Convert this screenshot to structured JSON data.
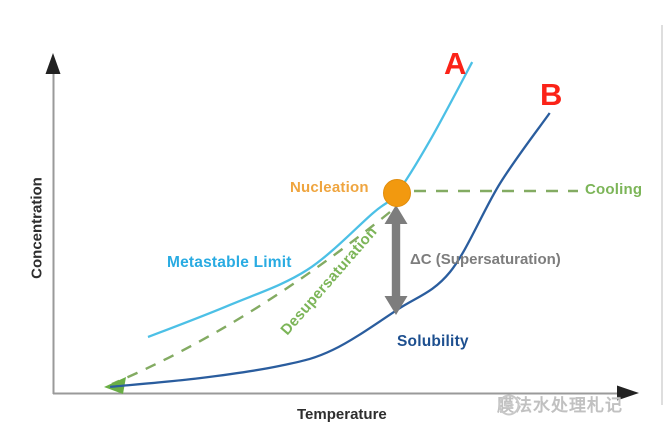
{
  "axes": {
    "x_label": "Temperature",
    "y_label": "Concentration",
    "axis_color": "#9a9a9a",
    "arrowhead_color": "#222222"
  },
  "labels": {
    "curve_a": "A",
    "curve_b": "B",
    "nucleation": "Nucleation",
    "cooling": "Cooling",
    "metastable_limit": "Metastable Limit",
    "desupersaturation": "Desupersaturation",
    "delta_c": "ΔC (Supersaturation)",
    "solubility": "Solubility"
  },
  "colors": {
    "curve_a_red_label": "#fb2318",
    "curve_b_red_label": "#fb2318",
    "metastable_text": "#29abe2",
    "solubility_text": "#1d4f8f",
    "nucleation_text": "#efa53f",
    "nucleation_dot": "#f2990f",
    "green_annotation": "#7cb558",
    "gray_annotation": "#7d7d7d"
  },
  "watermark": {
    "text": "膜法水处理札记",
    "logo_icon": "circular-swirl",
    "color": "#c1c1c1"
  },
  "chart_data": {
    "type": "line",
    "title": "",
    "xlabel": "Temperature",
    "ylabel": "Concentration",
    "axis_ticks": "none (conceptual diagram, unlabeled axes)",
    "grid": false,
    "legend_position": "inline curve labels",
    "series": [
      {
        "id": "metastable_limit",
        "name": "Metastable Limit (curve A)",
        "color": "#4cc0e6",
        "points": [
          [
            0.163,
            0.168
          ],
          [
            0.304,
            0.263
          ],
          [
            0.436,
            0.366
          ],
          [
            0.549,
            0.534
          ],
          [
            0.59,
            0.593
          ],
          [
            0.647,
            0.749
          ],
          [
            0.719,
            0.979
          ]
        ]
      },
      {
        "id": "solubility",
        "name": "Solubility (curve B)",
        "color": "#2a5d9e",
        "points": [
          [
            0.098,
            0.021
          ],
          [
            0.252,
            0.047
          ],
          [
            0.389,
            0.083
          ],
          [
            0.48,
            0.13
          ],
          [
            0.59,
            0.248
          ],
          [
            0.681,
            0.36
          ],
          [
            0.767,
            0.622
          ],
          [
            0.852,
            0.829
          ]
        ]
      }
    ],
    "annotations": {
      "nucleation_point": [
        0.59,
        0.593
      ],
      "cooling_path": "horizontal dashed green line from nucleation point toward lower temperature label 'Cooling'",
      "desupersaturation_path": "dashed green arrow from nucleation point down-left along solubility curve to origin area",
      "delta_c_arrow": "vertical gray double-headed arrow between solubility curve and nucleation point marking supersaturation ΔC"
    }
  }
}
